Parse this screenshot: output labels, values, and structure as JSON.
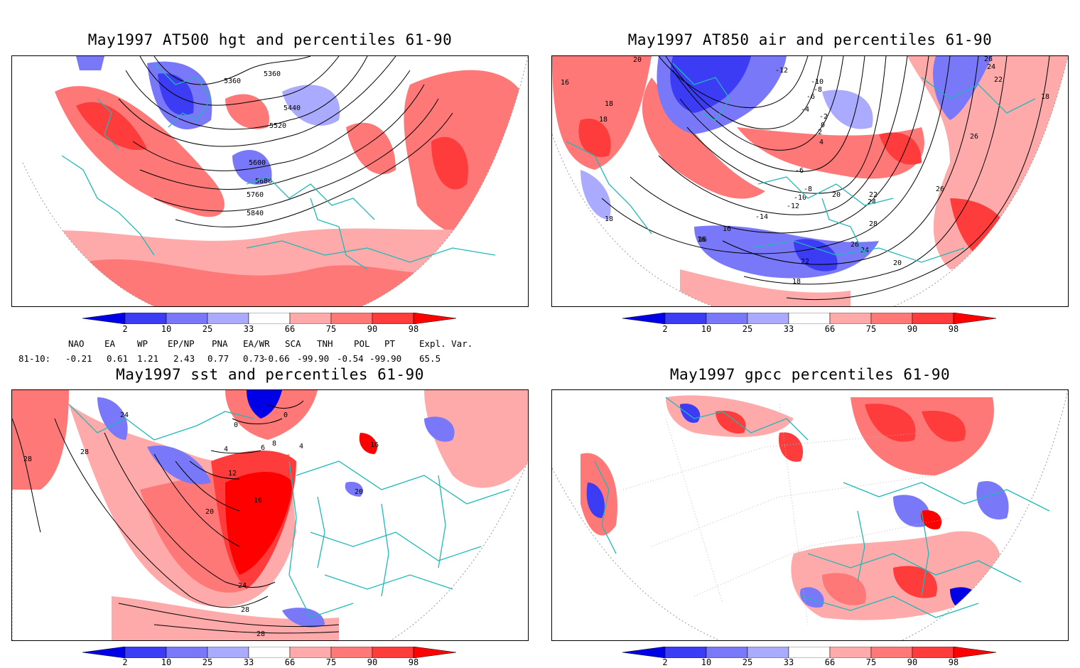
{
  "titles": {
    "p1": "May1997 AT500 hgt and percentiles 61-90",
    "p2": "May1997 AT850 air and percentiles 61-90",
    "p3": "May1997 sst and percentiles 61-90",
    "p4": "May1997 gpcc percentiles 61-90"
  },
  "colorbar": {
    "labels": [
      "2",
      "10",
      "25",
      "33",
      "66",
      "75",
      "90",
      "98"
    ],
    "colors": {
      "p2": "#0000e6",
      "p10": "#3c3cf5",
      "p25": "#7878f8",
      "p33": "#aaaaff",
      "white": "#ffffff",
      "p66": "#ffaaaa",
      "p75": "#ff7878",
      "p90": "#ff3c3c",
      "p98": "#ff0000"
    }
  },
  "indices": {
    "headers": [
      "NAO",
      "EA",
      "WP",
      "EP/NP",
      "PNA",
      "EA/WR",
      "SCA",
      "TNH",
      "POL",
      "PT",
      "Expl. Var."
    ],
    "row_label": "81-10:",
    "values": [
      "-0.21",
      "0.61",
      "1.21",
      "2.43",
      "0.77",
      "0.73",
      "-0.66",
      "-99.90",
      "-0.54",
      "-99.90",
      "65.5"
    ]
  },
  "contour_labels": {
    "p1": [
      "5360",
      "5360",
      "5440",
      "5520",
      "5600",
      "5680",
      "5760",
      "5840"
    ],
    "p2": [
      "20",
      "16",
      "18",
      "18",
      "-12",
      "-10",
      "-8",
      "-6",
      "-4",
      "-2",
      "0",
      "2",
      "4",
      "-6",
      "-8",
      "-10",
      "-12",
      "-14",
      "16",
      "16",
      "18",
      "20",
      "22",
      "24",
      "26",
      "28",
      "24",
      "26",
      "22",
      "18",
      "18",
      "26",
      "24",
      "26",
      "20",
      "22",
      "16"
    ],
    "p3": [
      "24",
      "28",
      "28",
      "0",
      "4",
      "6",
      "8",
      "12",
      "16",
      "20",
      "24",
      "28",
      "28",
      "16",
      "20",
      "0",
      "4"
    ]
  },
  "maps": {
    "coast_color": "#20b8b8",
    "contour_color": "#000000"
  }
}
